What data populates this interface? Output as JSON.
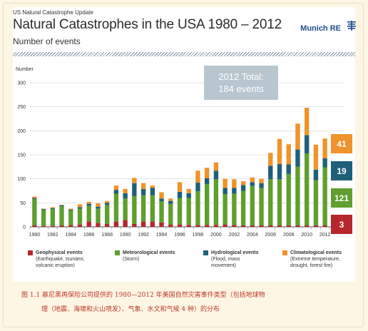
{
  "header": {
    "supertitle": "US Natural Catastrophe Update",
    "title": "Natural Catastrophes in the USA 1980 – 2012",
    "subtitle": "Number of events",
    "brand": "Munich RE"
  },
  "total_box": {
    "line1": "2012 Total:",
    "line2": "184 events"
  },
  "totals_2012": [
    {
      "value": "41",
      "color": "#f0932b"
    },
    {
      "value": "19",
      "color": "#1f5f7a"
    },
    {
      "value": "121",
      "color": "#5f9e2f"
    },
    {
      "value": "3",
      "color": "#b5272d"
    }
  ],
  "legend": [
    {
      "name": "Geophysical events",
      "detail1": "(Earthquake, tsunami,",
      "detail2": "volcanic eruption)",
      "color": "#b5272d"
    },
    {
      "name": "Meteorological events",
      "detail1": "(Storm)",
      "detail2": "",
      "color": "#5f9e2f"
    },
    {
      "name": "Hydrological events",
      "detail1": "(Flood, mass",
      "detail2": "movement)",
      "color": "#1f5f7a"
    },
    {
      "name": "Climatological events",
      "detail1": "(Extreme temperature,",
      "detail2": "drought, forest fire)",
      "color": "#f0932b"
    }
  ],
  "caption": {
    "line1": "图 1.1   慕尼黑再保险公司提供的 1980—2012 年美国自然灾害事件类型（包括地球物",
    "line2": "理（地震、海啸和火山喷发）、气象、水文和气候 4 种）的分布"
  },
  "chart_data": {
    "type": "bar",
    "stacked": true,
    "ylabel": "Number",
    "ylim": [
      0,
      300
    ],
    "yticks": [
      0,
      50,
      100,
      150,
      200,
      250,
      300
    ],
    "grid": true,
    "x": [
      1980,
      1981,
      1982,
      1983,
      1984,
      1985,
      1986,
      1987,
      1988,
      1989,
      1990,
      1991,
      1992,
      1993,
      1994,
      1995,
      1996,
      1997,
      1998,
      1999,
      2000,
      2001,
      2002,
      2003,
      2004,
      2005,
      2006,
      2007,
      2008,
      2009,
      2010,
      2011,
      2012
    ],
    "xtick_labels": [
      "1980",
      "1982",
      "1984",
      "1986",
      "1988",
      "1990",
      "1992",
      "1994",
      "1996",
      "1998",
      "2000",
      "2002",
      "2004",
      "2006",
      "2008",
      "2010",
      "2012"
    ],
    "series": [
      {
        "name": "Geophysical events",
        "color": "#b5272d",
        "values": [
          3,
          2,
          2,
          3,
          4,
          5,
          11,
          8,
          6,
          11,
          14,
          6,
          11,
          11,
          9,
          5,
          5,
          4,
          4,
          4,
          4,
          5,
          4,
          3,
          3,
          3,
          3,
          3,
          3,
          3,
          3,
          3,
          3
        ]
      },
      {
        "name": "Meteorological events",
        "color": "#5f9e2f",
        "values": [
          55,
          33,
          35,
          40,
          30,
          33,
          33,
          30,
          40,
          58,
          45,
          58,
          55,
          55,
          44,
          43,
          55,
          56,
          70,
          85,
          95,
          63,
          65,
          72,
          82,
          78,
          96,
          96,
          107,
          122,
          150,
          94,
          121
        ]
      },
      {
        "name": "Hydrological events",
        "color": "#1f5f7a",
        "values": [
          2,
          2,
          2,
          2,
          2,
          3,
          4,
          4,
          4,
          8,
          11,
          27,
          13,
          15,
          6,
          6,
          13,
          10,
          18,
          12,
          18,
          13,
          12,
          12,
          8,
          10,
          28,
          32,
          20,
          36,
          38,
          22,
          19
        ]
      },
      {
        "name": "Climatological events",
        "color": "#f0932b",
        "values": [
          3,
          1,
          2,
          1,
          2,
          6,
          4,
          7,
          4,
          9,
          9,
          11,
          12,
          5,
          13,
          5,
          20,
          9,
          25,
          22,
          17,
          19,
          18,
          8,
          10,
          9,
          27,
          52,
          42,
          54,
          57,
          52,
          41
        ]
      }
    ]
  }
}
